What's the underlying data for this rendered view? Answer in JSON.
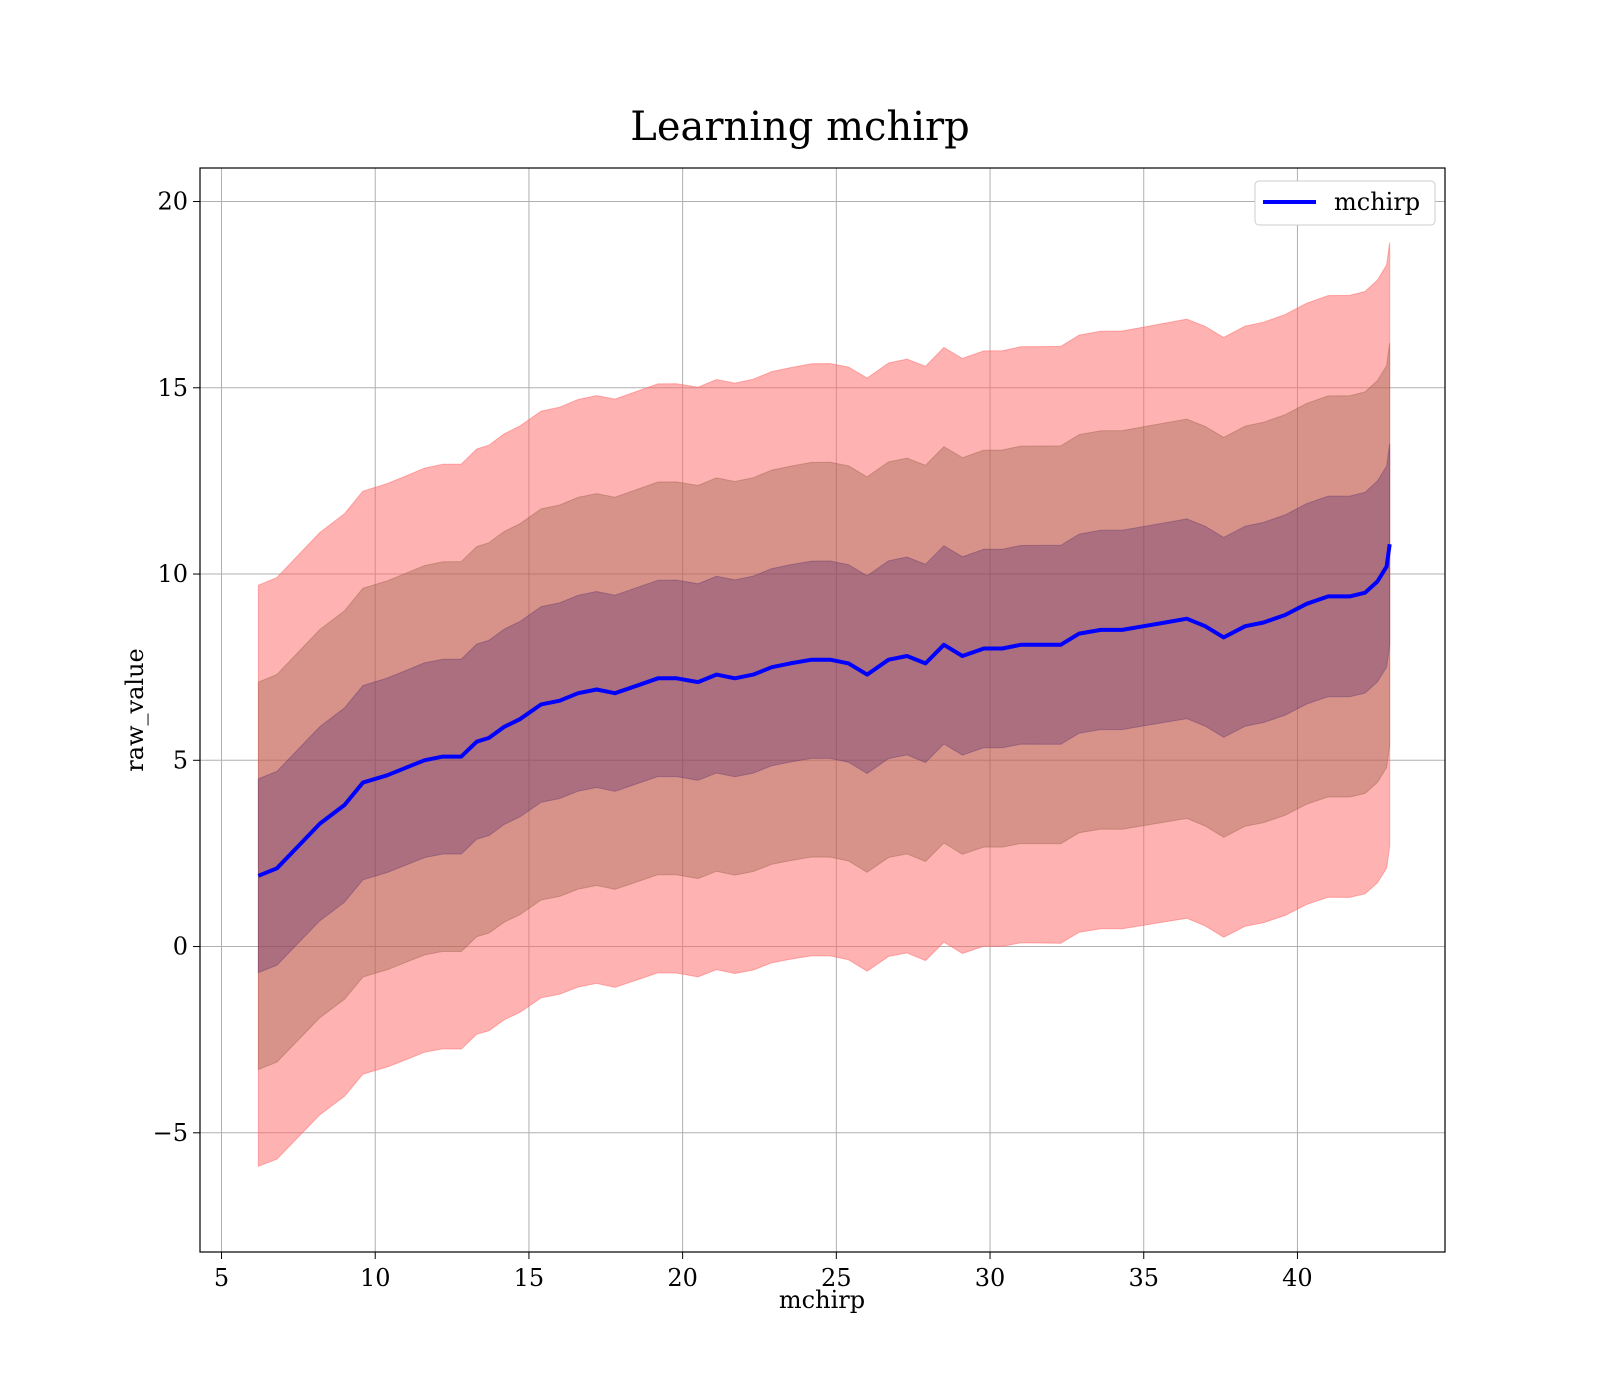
{
  "chart_data": {
    "type": "area",
    "title": "Learning mchirp",
    "xlabel": "mchirp",
    "ylabel": "raw_value",
    "xlim": [
      4.3,
      44.8
    ],
    "ylim": [
      -8.2,
      20.9
    ],
    "x_ticks": [
      5,
      10,
      15,
      20,
      25,
      30,
      35,
      40
    ],
    "x_tick_labels": [
      "5",
      "10",
      "15",
      "20",
      "25",
      "30",
      "35",
      "40"
    ],
    "y_ticks": [
      -5,
      0,
      5,
      10,
      15,
      20
    ],
    "y_tick_labels": [
      "−5",
      "0",
      "5",
      "10",
      "15",
      "20"
    ],
    "grid": true,
    "legend_position": "top-right",
    "series": [
      {
        "name": "mchirp",
        "color": "#0000ff",
        "x": [
          6.2,
          6.8,
          7.5,
          8.2,
          9.0,
          9.6,
          10.4,
          11.0,
          11.6,
          12.2,
          12.8,
          13.3,
          13.7,
          14.2,
          14.7,
          15.4,
          16.0,
          16.6,
          17.2,
          17.8,
          18.5,
          19.2,
          19.8,
          20.5,
          21.1,
          21.7,
          22.3,
          22.9,
          23.5,
          24.2,
          24.8,
          25.4,
          26.0,
          26.7,
          27.3,
          27.9,
          28.5,
          29.1,
          29.8,
          30.4,
          31.0,
          31.7,
          32.3,
          32.9,
          33.6,
          34.3,
          35.0,
          35.7,
          36.4,
          37.0,
          37.6,
          38.3,
          38.9,
          39.6,
          40.3,
          41.0,
          41.7,
          42.2,
          42.6,
          42.9,
          43.0
        ],
        "y": [
          1.9,
          2.1,
          2.7,
          3.3,
          3.8,
          4.4,
          4.6,
          4.8,
          5.0,
          5.1,
          5.1,
          5.5,
          5.6,
          5.9,
          6.1,
          6.5,
          6.6,
          6.8,
          6.9,
          6.8,
          7.0,
          7.2,
          7.2,
          7.1,
          7.3,
          7.2,
          7.3,
          7.5,
          7.6,
          7.7,
          7.7,
          7.6,
          7.3,
          7.7,
          7.8,
          7.6,
          8.1,
          7.8,
          8.0,
          8.0,
          8.1,
          8.1,
          8.1,
          8.4,
          8.5,
          8.5,
          8.6,
          8.7,
          8.8,
          8.6,
          8.3,
          8.6,
          8.7,
          8.9,
          9.2,
          9.4,
          9.4,
          9.5,
          9.8,
          10.2,
          10.8
        ]
      }
    ],
    "bands": [
      {
        "fill": "#ff6666",
        "opacity": 0.5,
        "sigma": 3
      },
      {
        "fill": "#8b5a3c",
        "opacity": 0.35,
        "sigma": 2
      },
      {
        "fill": "#5a2d6e",
        "opacity": 0.35,
        "sigma": 1
      }
    ],
    "band_sigma_start": 2.6,
    "band_sigma_end": 2.7
  }
}
